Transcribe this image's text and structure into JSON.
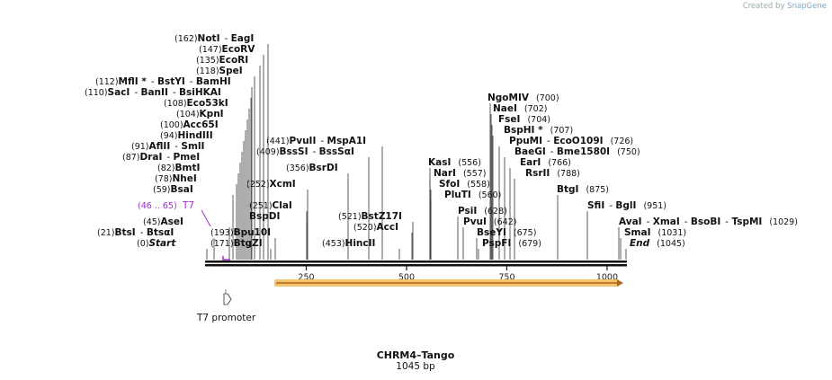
{
  "credit": {
    "prefix": "Created by",
    "brand": "SnapGene"
  },
  "sequence": {
    "name": "CHRM4–Tango",
    "length_label": "1045 bp",
    "length": 1045
  },
  "axis": {
    "ticks": [
      250,
      500,
      750,
      1000
    ]
  },
  "features": [
    {
      "name": "T7",
      "range": "(46 .. 65)",
      "color": "#9b30c8"
    },
    {
      "name": "T7 promoter",
      "color": "#333333"
    }
  ],
  "enzymes": [
    {
      "pos": "(162)",
      "names": [
        "NotI",
        "EagI"
      ]
    },
    {
      "pos": "(147)",
      "names": [
        "EcoRV"
      ]
    },
    {
      "pos": "(135)",
      "names": [
        "EcoRI"
      ]
    },
    {
      "pos": "(118)",
      "names": [
        "SpeI"
      ]
    },
    {
      "pos": "(112)",
      "names": [
        "MflI *",
        "BstYI",
        "BamHI"
      ]
    },
    {
      "pos": "(110)",
      "names": [
        "SacI",
        "BanII",
        "BsiHKAI"
      ]
    },
    {
      "pos": "(108)",
      "names": [
        "Eco53kI"
      ]
    },
    {
      "pos": "(104)",
      "names": [
        "KpnI"
      ]
    },
    {
      "pos": "(100)",
      "names": [
        "Acc65I"
      ]
    },
    {
      "pos": "(94)",
      "names": [
        "HindIII"
      ]
    },
    {
      "pos": "(91)",
      "names": [
        "AflII",
        "SmlI"
      ]
    },
    {
      "pos": "(87)",
      "names": [
        "DraI",
        "PmeI"
      ]
    },
    {
      "pos": "(82)",
      "names": [
        "BmtI"
      ]
    },
    {
      "pos": "(78)",
      "names": [
        "NheI"
      ]
    },
    {
      "pos": "(59)",
      "names": [
        "BsaI"
      ]
    },
    {
      "pos": "(45)",
      "names": [
        "AseI"
      ]
    },
    {
      "pos": "(21)",
      "names": [
        "BtsI",
        "BtsαI"
      ]
    },
    {
      "pos": "(0)",
      "names": [
        "Start"
      ]
    },
    {
      "pos": "(441)",
      "names": [
        "PvuII",
        "MspA1I"
      ]
    },
    {
      "pos": "(409)",
      "names": [
        "BssSI",
        "BssSαI"
      ]
    },
    {
      "pos": "(356)",
      "names": [
        "BsrDI"
      ]
    },
    {
      "pos": "(252)",
      "names": [
        "XcmI"
      ]
    },
    {
      "pos": "(251)",
      "names": [
        "ClaI"
      ]
    },
    {
      "pos": "",
      "names": [
        "BspDI"
      ]
    },
    {
      "pos": "(193)",
      "names": [
        "Bpu10I"
      ]
    },
    {
      "pos": "(171)",
      "names": [
        "BtgZI"
      ]
    },
    {
      "pos": "(521)",
      "names": [
        "BstZ17I"
      ]
    },
    {
      "pos": "(520)",
      "names": [
        "AccI"
      ]
    },
    {
      "pos": "(453)",
      "names": [
        "HincII"
      ]
    },
    {
      "pos": "(556)",
      "names": [
        "KasI"
      ]
    },
    {
      "pos": "(557)",
      "names": [
        "NarI"
      ]
    },
    {
      "pos": "(558)",
      "names": [
        "SfoI"
      ]
    },
    {
      "pos": "(560)",
      "names": [
        "PluTI"
      ]
    },
    {
      "pos": "(628)",
      "names": [
        "PsiI"
      ]
    },
    {
      "pos": "(642)",
      "names": [
        "PvuI"
      ]
    },
    {
      "pos": "(675)",
      "names": [
        "BseYI"
      ]
    },
    {
      "pos": "(679)",
      "names": [
        "PspFI"
      ]
    },
    {
      "pos": "(700)",
      "names": [
        "NgoMIV"
      ]
    },
    {
      "pos": "(702)",
      "names": [
        "NaeI"
      ]
    },
    {
      "pos": "(704)",
      "names": [
        "FseI"
      ]
    },
    {
      "pos": "(707)",
      "names": [
        "BspHI *"
      ]
    },
    {
      "pos": "(726)",
      "names": [
        "PpuMI",
        "EcoO109I"
      ]
    },
    {
      "pos": "(750)",
      "names": [
        "BaeGI",
        "Bme1580I"
      ]
    },
    {
      "pos": "(766)",
      "names": [
        "EarI"
      ]
    },
    {
      "pos": "(788)",
      "names": [
        "RsrII"
      ]
    },
    {
      "pos": "(875)",
      "names": [
        "BtgI"
      ]
    },
    {
      "pos": "(951)",
      "names": [
        "SfiI",
        "BglI"
      ]
    },
    {
      "pos": "(1029)",
      "names": [
        "AvaI",
        "XmaI",
        "BsoBI",
        "TspMI"
      ]
    },
    {
      "pos": "(1031)",
      "names": [
        "SmaI"
      ]
    },
    {
      "pos": "(1045)",
      "names": [
        "End"
      ]
    }
  ]
}
